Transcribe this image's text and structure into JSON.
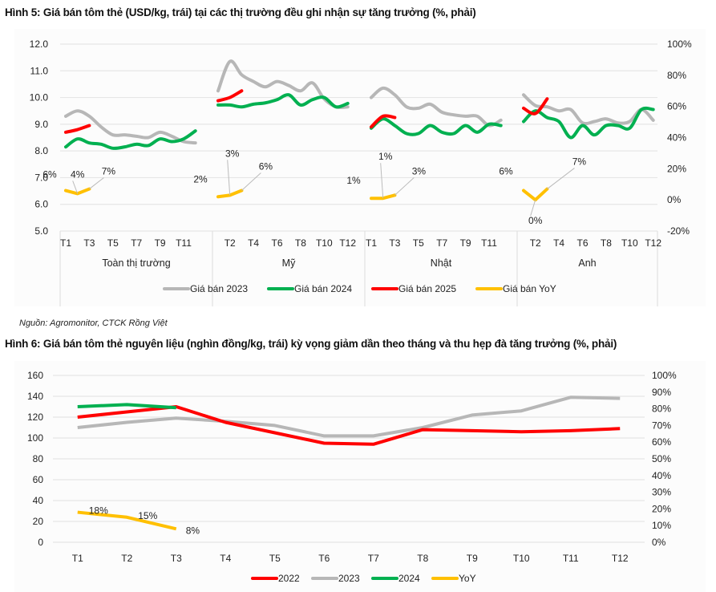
{
  "figure5": {
    "title": "Hình 5: Giá bán tôm thẻ (USD/kg, trái) tại các thị trường đều ghi nhận sự tăng trưởng (%, phải)"
  },
  "source": "Nguồn: Agromonitor, CTCK Rồng Việt",
  "figure6": {
    "title": "Hình 6: Giá bán tôm thẻ nguyên liệu  (nghìn đồng/kg, trái) kỳ vọng giảm dần theo tháng và thu hẹp đà tăng trưởng (%, phải)"
  },
  "colors": {
    "c2022": "#ff0000",
    "c2023": "#b7b7b7",
    "c2024": "#00b050",
    "c2025": "#ff0000",
    "yoy": "#ffc000",
    "grid": "#e6e6e6"
  },
  "chart_data": [
    {
      "type": "line",
      "title": "Hình 5: Giá bán tôm thẻ (USD/kg, trái) tại các thị trường đều ghi nhận sự tăng trưởng (%, phải)",
      "ylim": [
        5.0,
        12.0
      ],
      "yticks": [
        "5.0",
        "6.0",
        "7.0",
        "8.0",
        "9.0",
        "10.0",
        "11.0",
        "12.0"
      ],
      "y2lim": [
        -20,
        100
      ],
      "y2ticks": [
        "-20%",
        "0%",
        "20%",
        "40%",
        "60%",
        "80%",
        "100%"
      ],
      "grid": true,
      "legend_position": "bottom",
      "legend": [
        "Giá bán 2023",
        "Giá bán 2024",
        "Giá bán 2025",
        "Giá bán YoY"
      ],
      "groups": [
        {
          "name": "Toàn thị trường",
          "xticks": [
            "T1",
            "T3",
            "T5",
            "T7",
            "T9",
            "T11"
          ],
          "tick_months": [
            1,
            3,
            5,
            7,
            9,
            11
          ],
          "series": {
            "2023": [
              9.3,
              9.5,
              9.3,
              8.9,
              8.6,
              8.6,
              8.55,
              8.5,
              8.7,
              8.55,
              8.35,
              8.3
            ],
            "2024": [
              8.15,
              8.45,
              8.3,
              8.25,
              8.1,
              8.15,
              8.25,
              8.2,
              8.45,
              8.35,
              8.45,
              8.75
            ],
            "2025": [
              8.7,
              8.8,
              8.95
            ],
            "yoy": [
              6,
              4,
              7
            ],
            "yoy_labels": [
              "6%",
              "4%",
              "7%"
            ]
          }
        },
        {
          "name": "Mỹ",
          "xticks": [
            "T2",
            "T4",
            "T6",
            "T8",
            "T10",
            "T12"
          ],
          "tick_months": [
            2,
            4,
            6,
            8,
            10,
            12
          ],
          "series": {
            "2023": [
              10.25,
              11.35,
              10.85,
              10.6,
              10.4,
              10.6,
              10.45,
              10.25,
              10.55,
              9.95,
              9.65,
              9.65
            ],
            "2024": [
              9.72,
              9.72,
              9.65,
              9.75,
              9.8,
              9.92,
              10.1,
              9.72,
              9.92,
              10.0,
              9.65,
              9.78
            ],
            "2025": [
              9.88,
              10.0,
              10.25
            ],
            "yoy": [
              2,
              3,
              6
            ],
            "yoy_labels": [
              "2%",
              "3%",
              "6%"
            ]
          }
        },
        {
          "name": "Nhật",
          "xticks": [
            "T1",
            "T3",
            "T5",
            "T7",
            "T9",
            "T11"
          ],
          "tick_months": [
            1,
            3,
            5,
            7,
            9,
            11
          ],
          "series": {
            "2023": [
              10.0,
              10.35,
              10.1,
              9.65,
              9.6,
              9.75,
              9.45,
              9.35,
              9.3,
              9.3,
              8.95,
              9.15
            ],
            "2024": [
              8.85,
              9.2,
              8.95,
              8.65,
              8.65,
              8.95,
              8.7,
              8.65,
              8.95,
              8.7,
              9.0,
              8.95
            ],
            "2025": [
              8.9,
              9.3,
              9.25
            ],
            "yoy": [
              1,
              1,
              3
            ],
            "yoy_labels": [
              "1%",
              "1%",
              "3%"
            ]
          }
        },
        {
          "name": "Anh",
          "xticks": [
            "T2",
            "T4",
            "T6",
            "T8",
            "T10",
            "T12"
          ],
          "tick_months": [
            2,
            4,
            6,
            8,
            10,
            12
          ],
          "series": {
            "2023": [
              10.1,
              9.7,
              9.65,
              9.5,
              9.55,
              9.05,
              9.1,
              9.2,
              9.05,
              9.1,
              9.55,
              9.15
            ],
            "2024": [
              9.1,
              9.5,
              9.25,
              9.1,
              8.5,
              8.95,
              8.6,
              8.95,
              8.95,
              8.85,
              9.55,
              9.55
            ],
            "2025": [
              9.6,
              9.4,
              9.95
            ],
            "yoy": [
              6,
              0,
              7
            ],
            "yoy_labels": [
              "6%",
              "0%",
              "7%"
            ]
          }
        }
      ]
    },
    {
      "type": "line",
      "title": "Hình 6: Giá bán tôm thẻ nguyên liệu  (nghìn đồng/kg, trái) kỳ vọng giảm dần theo tháng và thu hẹp đà tăng trưởng (%, phải)",
      "categories": [
        "T1",
        "T2",
        "T3",
        "T4",
        "T5",
        "T6",
        "T7",
        "T8",
        "T9",
        "T10",
        "T11",
        "T12"
      ],
      "ylim": [
        0,
        160
      ],
      "yticks": [
        "0",
        "20",
        "40",
        "60",
        "80",
        "100",
        "120",
        "140",
        "160"
      ],
      "y2lim": [
        0,
        100
      ],
      "y2ticks": [
        "0%",
        "10%",
        "20%",
        "30%",
        "40%",
        "50%",
        "60%",
        "70%",
        "80%",
        "90%",
        "100%"
      ],
      "grid": true,
      "legend_position": "bottom",
      "series": [
        {
          "name": "2022",
          "values": [
            120,
            125,
            130,
            115,
            105,
            95,
            94,
            108,
            107,
            106,
            107,
            109
          ]
        },
        {
          "name": "2023",
          "values": [
            110,
            115,
            119,
            116,
            112,
            102,
            102,
            110,
            122,
            126,
            139,
            138
          ]
        },
        {
          "name": "2024",
          "values": [
            130,
            132,
            129
          ]
        },
        {
          "name": "YoY",
          "axis": "right",
          "values": [
            18,
            15,
            8
          ],
          "labels": [
            "18%",
            "15%",
            "8%"
          ]
        }
      ]
    }
  ]
}
